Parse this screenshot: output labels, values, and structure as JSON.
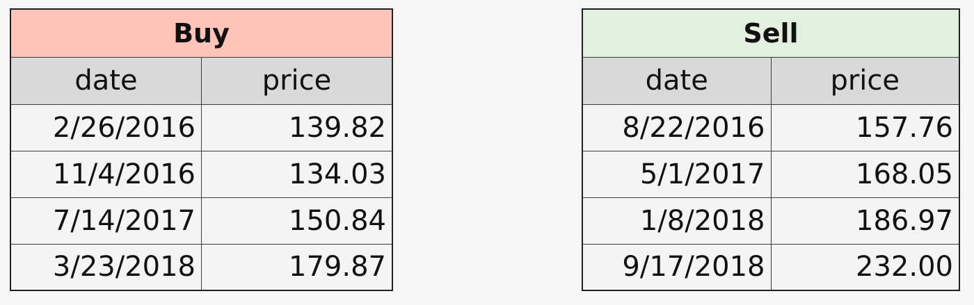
{
  "buy": {
    "title": "Buy",
    "headers": [
      "date",
      "price"
    ],
    "rows": [
      {
        "date": "2/26/2016",
        "price": "139.82"
      },
      {
        "date": "11/4/2016",
        "price": "134.03"
      },
      {
        "date": "7/14/2017",
        "price": "150.84"
      },
      {
        "date": "3/23/2018",
        "price": "179.87"
      }
    ],
    "title_color": "#ffc4b8"
  },
  "sell": {
    "title": "Sell",
    "headers": [
      "date",
      "price"
    ],
    "rows": [
      {
        "date": "8/22/2016",
        "price": "157.76"
      },
      {
        "date": "5/1/2017",
        "price": "168.05"
      },
      {
        "date": "1/8/2018",
        "price": "186.97"
      },
      {
        "date": "9/17/2018",
        "price": "232.00"
      }
    ],
    "title_color": "#e3efdf"
  },
  "header_row_color": "#d9d9d9"
}
